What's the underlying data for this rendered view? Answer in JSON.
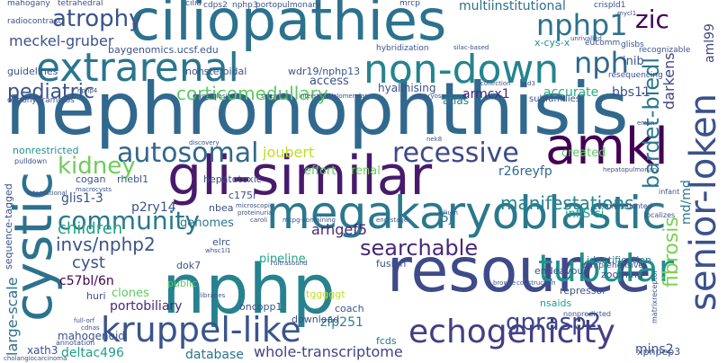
{
  "words": [
    {
      "text": "nephronophthisis",
      "color": "#31688e"
    },
    {
      "text": "ciliopathies",
      "color": "#2c728e"
    },
    {
      "text": "resource",
      "color": "#3e4a89"
    },
    {
      "text": "nphp",
      "color": "#26828e"
    },
    {
      "text": "gli-similar",
      "color": "#481a6c"
    },
    {
      "text": "megakaryoblastic",
      "color": "#2a788e"
    },
    {
      "text": "extrarenal",
      "color": "#2a768e"
    },
    {
      "text": "non-down",
      "color": "#25848e"
    },
    {
      "text": "cystic",
      "color": "#2c728e"
    },
    {
      "text": "senior-loken",
      "color": "#3b528b"
    },
    {
      "text": "amkl",
      "color": "#440154"
    },
    {
      "text": "echogenicity",
      "color": "#433e85"
    },
    {
      "text": "kruppel-like",
      "color": "#3a548c"
    },
    {
      "text": "tubular",
      "color": "#21918c"
    },
    {
      "text": "recessive",
      "color": "#3e4989"
    },
    {
      "text": "autosomal",
      "color": "#31688e"
    },
    {
      "text": "community",
      "color": "#2a788e"
    },
    {
      "text": "nphp1",
      "color": "#2c718e"
    },
    {
      "text": "nph",
      "color": "#31688e"
    },
    {
      "text": "zic",
      "color": "#440154"
    },
    {
      "text": "kidney",
      "color": "#6ece58"
    },
    {
      "text": "atrophy",
      "color": "#3b528b"
    },
    {
      "text": "pediatric",
      "color": "#3b528b"
    },
    {
      "text": "corticomedullary",
      "color": "#5ec962"
    },
    {
      "text": "searchable",
      "color": "#482878"
    },
    {
      "text": "gprasp2",
      "color": "#404688"
    },
    {
      "text": "manifestations",
      "color": "#25858e"
    },
    {
      "text": "bardet-biedl",
      "color": "#2a788e"
    },
    {
      "text": "fibrosis",
      "color": "#7ad151"
    },
    {
      "text": "invs/nphp2",
      "color": "#3b528b"
    },
    {
      "text": "children",
      "color": "#21a685"
    },
    {
      "text": "cyst",
      "color": "#3b528b"
    },
    {
      "text": "darkens",
      "color": "#414487"
    },
    {
      "text": "joubert",
      "color": "#bddf26"
    },
    {
      "text": "whole-transcriptome",
      "color": "#414487"
    },
    {
      "text": "database",
      "color": "#2c728e"
    },
    {
      "text": "deltac496",
      "color": "#1f9e89"
    },
    {
      "text": "large-scale",
      "color": "#2d708e"
    },
    {
      "text": "multiinstitutional",
      "color": "#2d708e"
    },
    {
      "text": "meckel-gruber",
      "color": "#3b528b"
    },
    {
      "text": "arhgef5",
      "color": "#482878"
    },
    {
      "text": "portobiliary",
      "color": "#482878"
    },
    {
      "text": "mahogenoid",
      "color": "#3b528b"
    },
    {
      "text": "armcx1",
      "color": "#482878"
    },
    {
      "text": "accurate",
      "color": "#27ad81"
    },
    {
      "text": "bbs11",
      "color": "#3b528b"
    },
    {
      "text": "glis1-3",
      "color": "#3b528b"
    },
    {
      "text": "p2ry14",
      "color": "#3b528b"
    },
    {
      "text": "c57bl/6n",
      "color": "#440154"
    },
    {
      "text": "r26reyfp",
      "color": "#31688e"
    },
    {
      "text": "inflS-si",
      "color": "#1f9e89"
    },
    {
      "text": "zfp251",
      "color": "#26828e"
    },
    {
      "text": "mins2",
      "color": "#3b528b"
    },
    {
      "text": "md/md",
      "color": "#2a788e"
    },
    {
      "text": "aml99",
      "color": "#414487"
    },
    {
      "text": "xpnpep3",
      "color": "#3b528b"
    },
    {
      "text": "xath3",
      "color": "#3b528b"
    },
    {
      "text": "5j",
      "color": "#2a788e"
    },
    {
      "text": "genomes",
      "color": "#2a788e"
    },
    {
      "text": "pipeline",
      "color": "#21a685"
    },
    {
      "text": "clones",
      "color": "#5ec962"
    },
    {
      "text": "effort",
      "color": "#5ec962"
    },
    {
      "text": "renal",
      "color": "#6ece58"
    },
    {
      "text": "created",
      "color": "#5ec962"
    },
    {
      "text": "access",
      "color": "#3b528b"
    },
    {
      "text": "atlas",
      "color": "#2a788e"
    },
    {
      "text": "hyalinising",
      "color": "#3b528b"
    },
    {
      "text": "inib",
      "color": "#3b528b"
    },
    {
      "text": "nonrestricted",
      "color": "#21918c"
    },
    {
      "text": "cogan",
      "color": "#3b528b"
    },
    {
      "text": "rhebl1",
      "color": "#3b528b"
    },
    {
      "text": "hepatotoxic",
      "color": "#3b528b"
    },
    {
      "text": "nonsteroidal",
      "color": "#3b528b"
    },
    {
      "text": "wdr19/nphp13",
      "color": "#3b528b"
    },
    {
      "text": "baygenomics.ucsf.edu",
      "color": "#3b528b"
    },
    {
      "text": "x-cys-x",
      "color": "#21918c"
    },
    {
      "text": "fcds",
      "color": "#2a788e"
    },
    {
      "text": "download",
      "color": "#3b528b"
    },
    {
      "text": "coach",
      "color": "#3b528b"
    },
    {
      "text": "nsaids",
      "color": "#1f9e89"
    },
    {
      "text": "repressor",
      "color": "#3b528b"
    },
    {
      "text": "endeavour",
      "color": "#3b528b"
    },
    {
      "text": "identification",
      "color": "#2a788e"
    },
    {
      "text": "zooming",
      "color": "#3b528b"
    },
    {
      "text": "huri",
      "color": "#3b528b"
    },
    {
      "text": "c175r",
      "color": "#3b528b"
    },
    {
      "text": "elrc",
      "color": "#3b528b"
    },
    {
      "text": "public",
      "color": "#5ec962"
    },
    {
      "text": "tgggggt",
      "color": "#bddf26"
    },
    {
      "text": "oncopp1",
      "color": "#3b528b"
    },
    {
      "text": "fusion",
      "color": "#3b528b"
    },
    {
      "text": "dok7",
      "color": "#3b528b"
    },
    {
      "text": "nbea",
      "color": "#3b528b"
    },
    {
      "text": "mahogany",
      "color": "#3b528b"
    },
    {
      "text": "tetrahedral",
      "color": "#3b528b"
    },
    {
      "text": "radiocontrast",
      "color": "#3b528b"
    },
    {
      "text": "guidelines",
      "color": "#3b528b"
    },
    {
      "text": "cdps2",
      "color": "#3b528b"
    },
    {
      "text": "nphp3",
      "color": "#3b528b"
    },
    {
      "text": "portopulmonary",
      "color": "#3b528b"
    },
    {
      "text": "mrcp",
      "color": "#3b528b"
    },
    {
      "text": "crispld1",
      "color": "#3b528b"
    },
    {
      "text": "cilia",
      "color": "#3b528b"
    },
    {
      "text": "glisbs",
      "color": "#3b528b"
    },
    {
      "text": "eucomm",
      "color": "#3b528b"
    },
    {
      "text": "resequencing",
      "color": "#3b528b"
    },
    {
      "text": "subfamilies",
      "color": "#3b528b"
    },
    {
      "text": "recognizable",
      "color": "#3b528b"
    },
    {
      "text": "hybridization",
      "color": "#3b528b"
    },
    {
      "text": "silac-based",
      "color": "#3b528b"
    },
    {
      "text": "collection",
      "color": "#3b528b"
    },
    {
      "text": "nsd3",
      "color": "#3b528b"
    },
    {
      "text": "emcn",
      "color": "#3b528b"
    },
    {
      "text": "mycl1",
      "color": "#3b528b"
    },
    {
      "text": "unrivalled",
      "color": "#3b528b"
    },
    {
      "text": "oligohydramnios",
      "color": "#3b528b"
    },
    {
      "text": "macrocysts",
      "color": "#3b528b"
    },
    {
      "text": "caroli",
      "color": "#3b528b"
    },
    {
      "text": "mcpg-containing",
      "color": "#3b528b"
    },
    {
      "text": "end-stage",
      "color": "#3b528b"
    },
    {
      "text": "comprehensive",
      "color": "#3b528b"
    },
    {
      "text": "unprecedented",
      "color": "#3b528b"
    },
    {
      "text": "localizes",
      "color": "#3b528b"
    },
    {
      "text": "infant",
      "color": "#3b528b"
    },
    {
      "text": "nonpredicted",
      "color": "#3b528b"
    },
    {
      "text": "matrixreceptor",
      "color": "#3b528b"
    },
    {
      "text": "browse",
      "color": "#3b528b"
    },
    {
      "text": "construction",
      "color": "#3b528b"
    },
    {
      "text": "sequence-tagged",
      "color": "#3b528b"
    },
    {
      "text": "pulldown",
      "color": "#3b528b"
    },
    {
      "text": "cholangiocarcinoma",
      "color": "#3b528b"
    },
    {
      "text": "hepatopulmonary",
      "color": "#3b528b"
    },
    {
      "text": "annotation",
      "color": "#3b528b"
    },
    {
      "text": "full-orf",
      "color": "#3b528b"
    },
    {
      "text": "cdnas",
      "color": "#3b528b"
    },
    {
      "text": "whsc1l1",
      "color": "#3b528b"
    },
    {
      "text": "microscopic",
      "color": "#3b528b"
    },
    {
      "text": "proteinuria",
      "color": "#3b528b"
    },
    {
      "text": "discovery",
      "color": "#3b528b"
    },
    {
      "text": "international",
      "color": "#3b528b"
    },
    {
      "text": "cilium",
      "color": "#3b528b"
    },
    {
      "text": "nek8",
      "color": "#3b528b"
    },
    {
      "text": "scientific",
      "color": "#3b528b"
    },
    {
      "text": "interstitial/glomerular",
      "color": "#3b528b"
    },
    {
      "text": "embryos",
      "color": "#3b528b"
    },
    {
      "text": "nphp4",
      "color": "#3b528b"
    },
    {
      "text": "hyperplasion",
      "color": "#3b528b"
    },
    {
      "text": "libraries",
      "color": "#3b528b"
    },
    {
      "text": "ultrasound",
      "color": "#3b528b"
    }
  ]
}
